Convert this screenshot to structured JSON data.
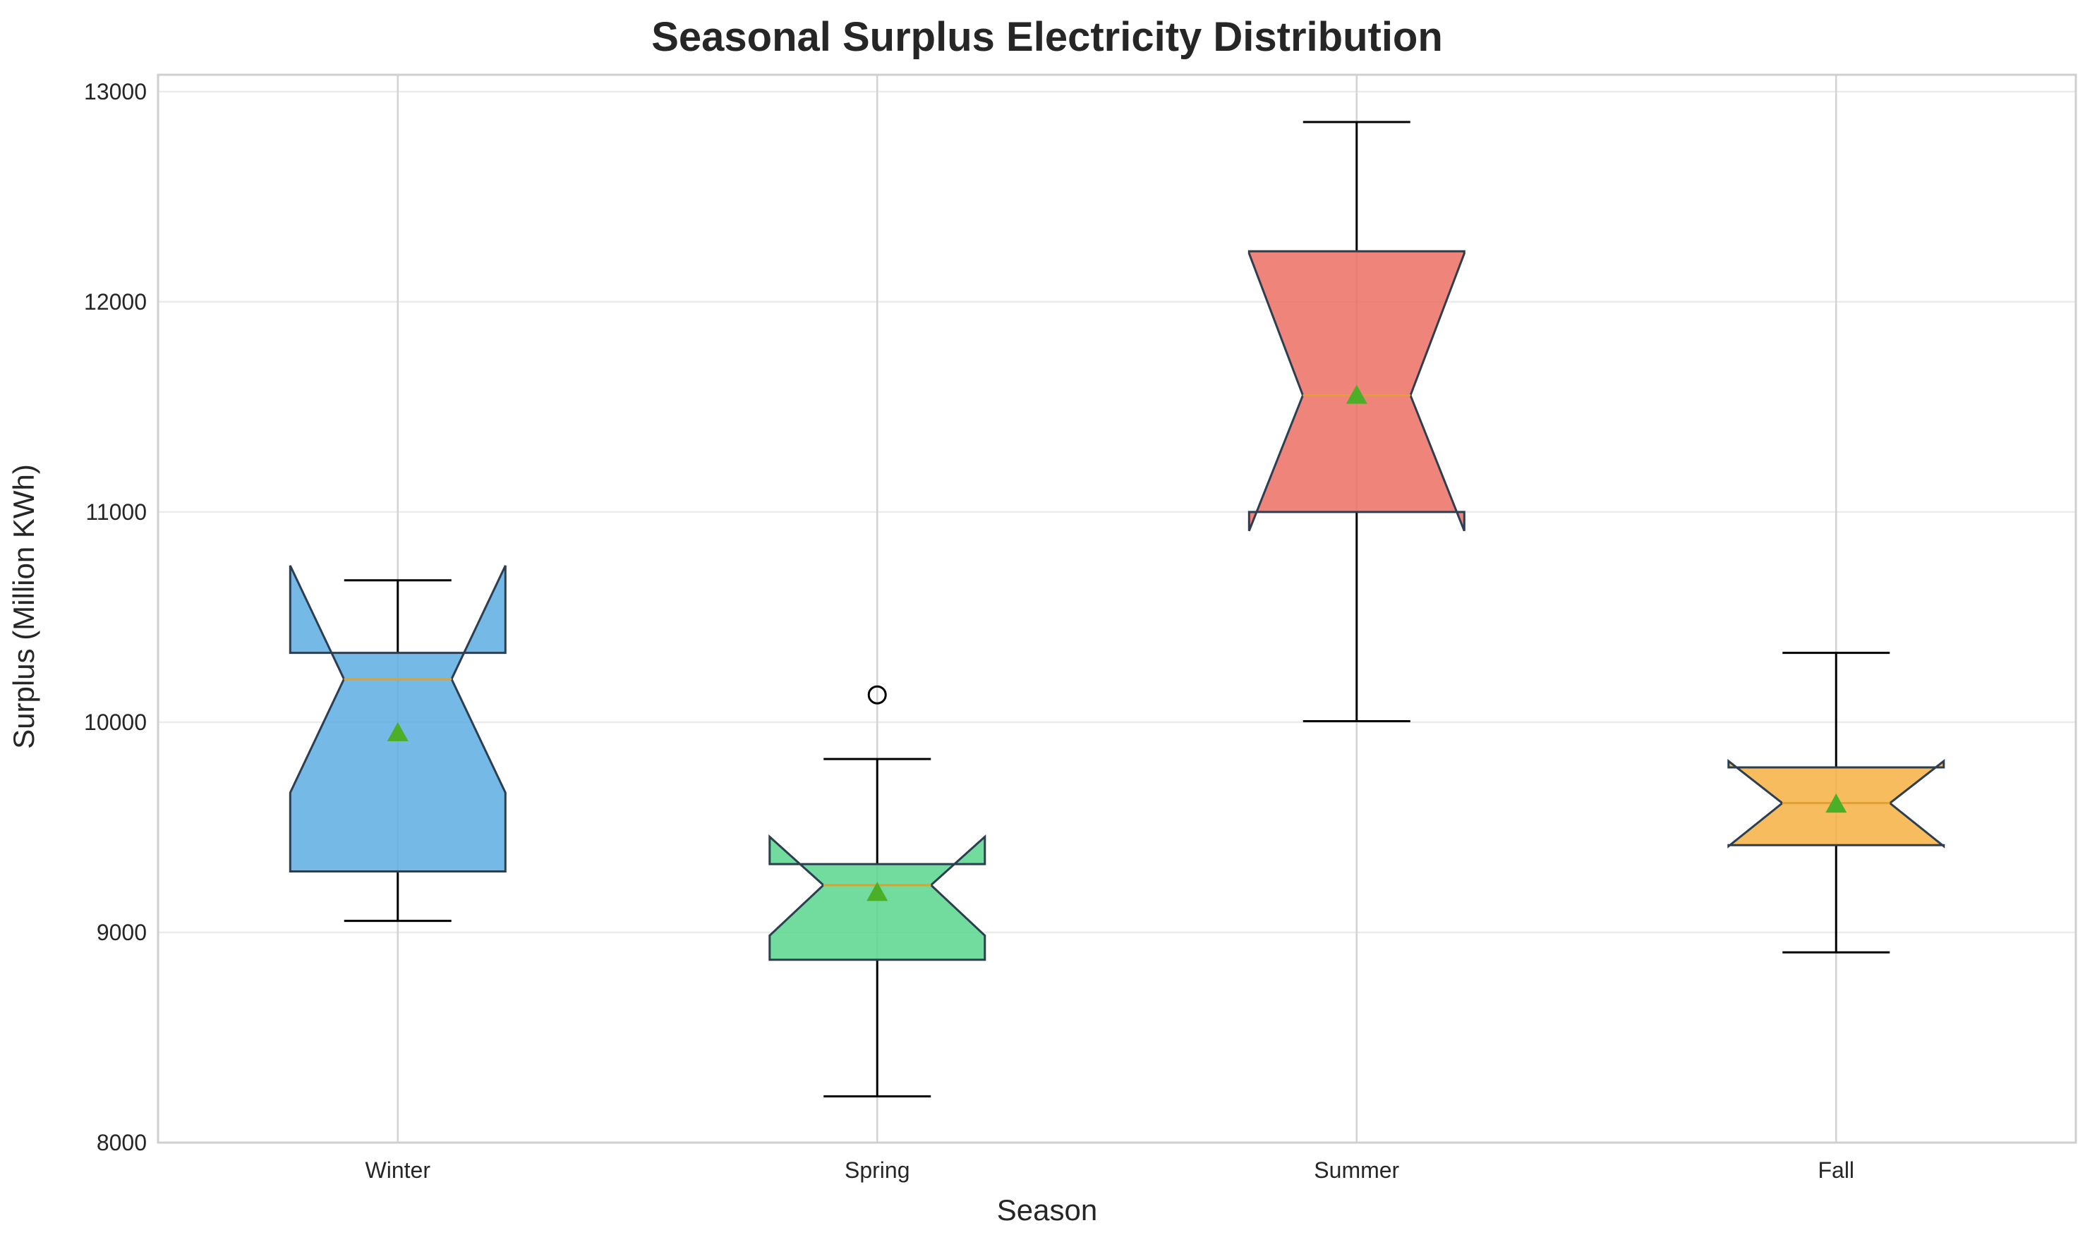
{
  "chart_data": {
    "type": "boxplot",
    "title": "Seasonal Surplus Electricity Distribution",
    "xlabel": "Season",
    "ylabel": "Surplus (Million KWh)",
    "ylim": [
      8000,
      13080
    ],
    "yticks": [
      8000,
      9000,
      10000,
      11000,
      12000,
      13000
    ],
    "grid": true,
    "notched": true,
    "show_means": true,
    "categories": [
      "Winter",
      "Spring",
      "Summer",
      "Fall"
    ],
    "boxes": [
      {
        "label": "Winter",
        "whisker_low": 9055,
        "q1": 9290,
        "median": 10205,
        "q3": 10330,
        "whisker_high": 10675,
        "mean": 9950,
        "notch_low": 9665,
        "notch_high": 10745,
        "outliers": [],
        "color": "#5DADE2"
      },
      {
        "label": "Spring",
        "whisker_low": 8220,
        "q1": 8870,
        "median": 9225,
        "q3": 9325,
        "whisker_high": 9825,
        "mean": 9190,
        "notch_low": 8985,
        "notch_high": 9455,
        "outliers": [
          10130
        ],
        "color": "#58D68D"
      },
      {
        "label": "Summer",
        "whisker_low": 10005,
        "q1": 11000,
        "median": 11555,
        "q3": 12240,
        "whisker_high": 12855,
        "mean": 11555,
        "notch_low": 10910,
        "notch_high": 12230,
        "outliers": [],
        "color": "#EC7063"
      },
      {
        "label": "Fall",
        "whisker_low": 8905,
        "q1": 9415,
        "median": 9615,
        "q3": 9785,
        "whisker_high": 10330,
        "mean": 9610,
        "notch_low": 9410,
        "notch_high": 9815,
        "outliers": [],
        "color": "#F5B041"
      }
    ],
    "median_color": "#E0A22A",
    "mean_marker_color": "#4CAF28"
  }
}
